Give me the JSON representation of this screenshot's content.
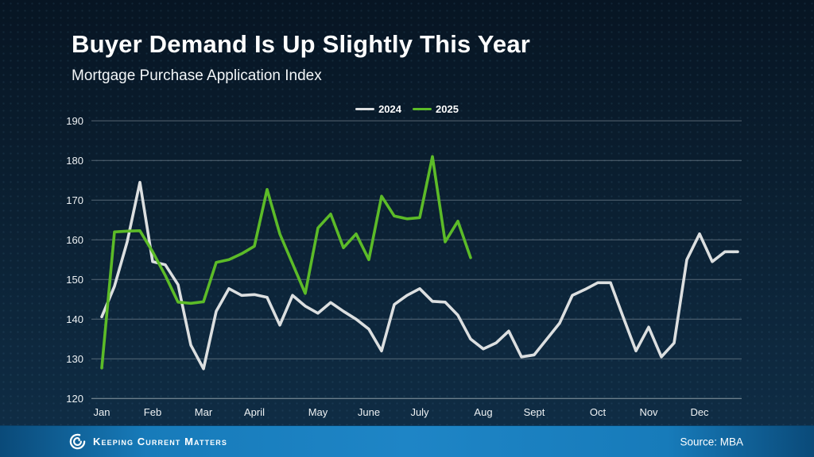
{
  "page": {
    "title": "Buyer Demand Is Up Slightly This Year",
    "subtitle": "Mortgage Purchase Application Index",
    "brand": "Keeping Current Matters",
    "source": "Source: MBA"
  },
  "colors": {
    "background": "#0b2032",
    "gridline": "#93a1ab",
    "axis_text": "#eef2f4",
    "series_2024": "#dcdfe0",
    "series_2025": "#5cbb28",
    "footer_bar": "#1e85c6",
    "title_text": "#ffffff"
  },
  "chart_data": {
    "type": "line",
    "title": "Buyer Demand Is Up Slightly This Year",
    "subtitle": "Mortgage Purchase Application Index",
    "xlabel": "",
    "ylabel": "Mortgage Purchase Application Index",
    "x_mode": "weekly",
    "categories": [
      "Jan",
      "Feb",
      "Mar",
      "April",
      "May",
      "June",
      "July",
      "Aug",
      "Sept",
      "Oct",
      "Nov",
      "Dec"
    ],
    "month_tick_week_index": [
      0,
      4,
      8,
      12,
      17,
      21,
      25,
      30,
      34,
      39,
      43,
      47
    ],
    "ylim": [
      120,
      190
    ],
    "y_ticks": [
      120,
      130,
      140,
      150,
      160,
      170,
      180,
      190
    ],
    "grid": true,
    "legend_position": "top-center",
    "series": [
      {
        "name": "2024",
        "color": "#dcdfe0",
        "values": [
          140.6,
          148.3,
          159.5,
          174.5,
          154.5,
          153.7,
          148.7,
          133.5,
          127.5,
          142,
          147.7,
          146,
          146.2,
          145.5,
          138.5,
          146,
          143.3,
          141.5,
          144.2,
          142,
          140,
          137.5,
          132,
          143.7,
          146,
          147.7,
          144.5,
          144.3,
          141,
          135,
          132.5,
          134,
          137,
          130.5,
          131,
          135,
          139,
          146,
          147.5,
          149.2,
          149.2,
          140.5,
          132,
          138,
          130.5,
          134,
          155,
          161.5,
          154.5,
          157,
          157
        ]
      },
      {
        "name": "2025",
        "color": "#5cbb28",
        "values": [
          127.7,
          162,
          162.2,
          162.3,
          157,
          151,
          144.3,
          144,
          144.4,
          154.3,
          155,
          156.5,
          158.4,
          172.7,
          161.5,
          154,
          146.5,
          163,
          166.5,
          158,
          161.5,
          155,
          171,
          166,
          165.3,
          165.6,
          181,
          159.5,
          164.7,
          155.5
        ]
      }
    ]
  }
}
